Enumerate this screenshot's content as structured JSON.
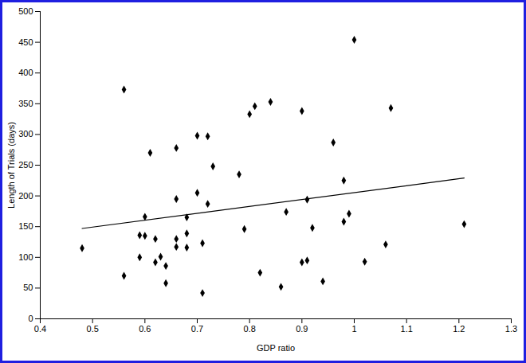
{
  "chart_data": {
    "type": "scatter",
    "x_label": "GDP ratio",
    "y_label": "Length of Trials (days)",
    "x": [
      0.48,
      0.56,
      0.56,
      0.59,
      0.59,
      0.6,
      0.6,
      0.61,
      0.62,
      0.62,
      0.63,
      0.64,
      0.64,
      0.66,
      0.66,
      0.66,
      0.66,
      0.68,
      0.68,
      0.68,
      0.7,
      0.7,
      0.71,
      0.71,
      0.72,
      0.72,
      0.73,
      0.78,
      0.79,
      0.8,
      0.81,
      0.82,
      0.84,
      0.86,
      0.87,
      0.9,
      0.9,
      0.91,
      0.91,
      0.92,
      0.94,
      0.96,
      0.98,
      0.98,
      0.99,
      1.0,
      1.02,
      1.06,
      1.07,
      1.21
    ],
    "values": [
      115,
      373,
      70,
      136,
      100,
      135,
      166,
      270,
      130,
      92,
      101,
      86,
      58,
      278,
      195,
      130,
      117,
      165,
      139,
      116,
      298,
      205,
      123,
      42,
      297,
      187,
      248,
      235,
      146,
      333,
      346,
      75,
      353,
      52,
      174,
      338,
      92,
      194,
      95,
      148,
      61,
      287,
      225,
      158,
      171,
      454,
      93,
      121,
      343,
      154
    ],
    "color": "#000000",
    "marker": "diamond",
    "trend_line": {
      "x": [
        0.48,
        1.21
      ],
      "y": [
        147,
        229
      ]
    },
    "xlim": [
      0.4,
      1.3
    ],
    "xticks": [
      0.4,
      0.5,
      0.6,
      0.7,
      0.8,
      0.9,
      1,
      1.1,
      1.2,
      1.3
    ],
    "ylim": [
      0,
      500
    ],
    "yticks": [
      0,
      50,
      100,
      150,
      200,
      250,
      300,
      350,
      400,
      450,
      500
    ],
    "grid": false
  }
}
